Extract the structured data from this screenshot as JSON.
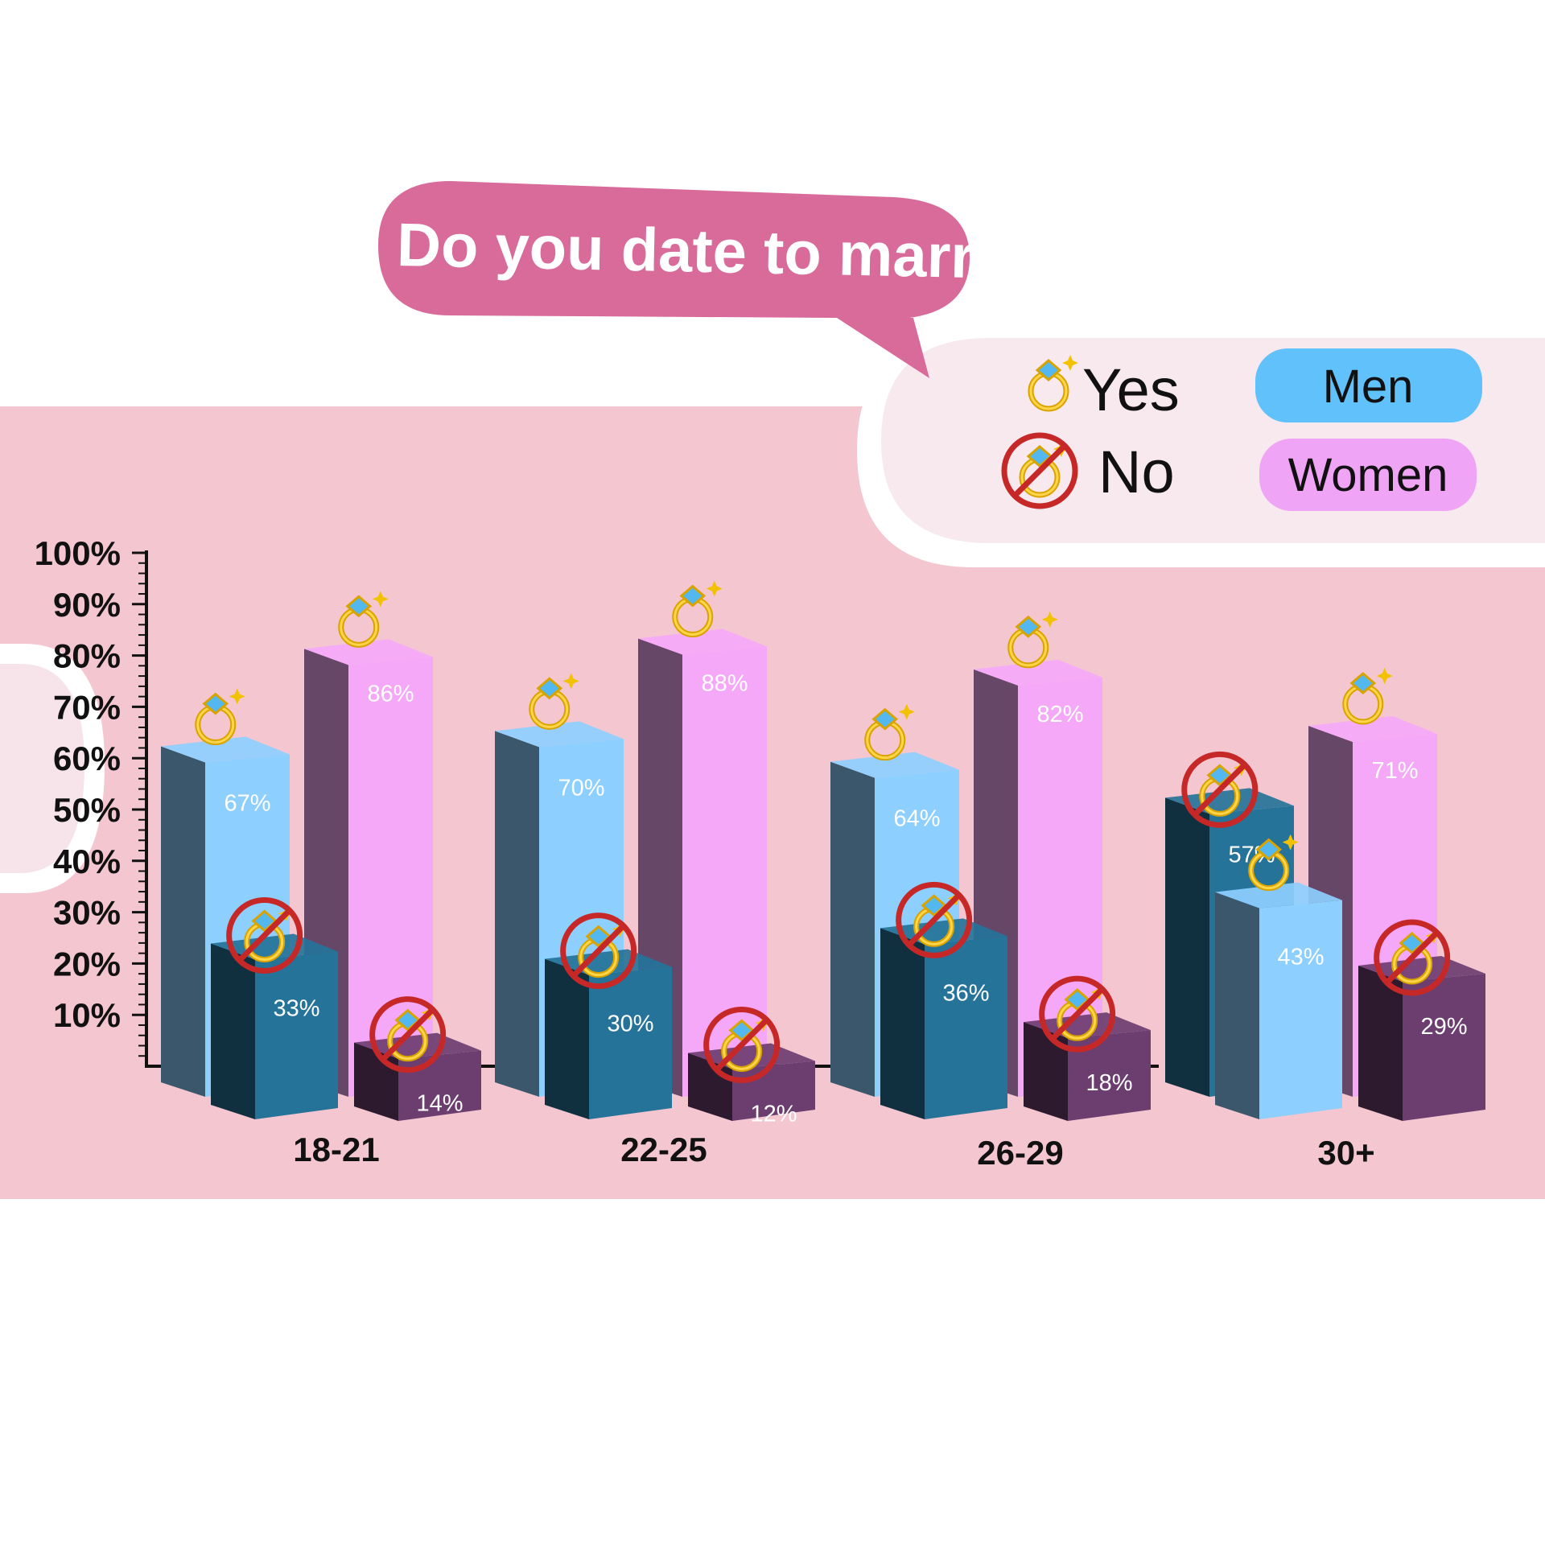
{
  "title": "Do you date to marry?",
  "legend": {
    "yes": {
      "label": "Yes",
      "icon": "ring-icon"
    },
    "no": {
      "label": "No",
      "icon": "crossed-ring-icon"
    },
    "men": {
      "label": "Men",
      "color": "#60c1fb"
    },
    "women": {
      "label": "Women",
      "color": "#f0a4f5"
    }
  },
  "colors": {
    "men_yes": "#8dcfff",
    "men_no": "#257399",
    "women_yes": "#f5a8f8",
    "women_no": "#6c3e70",
    "background_band": "#f4c6d0",
    "bubble": "#d96b9a"
  },
  "chart_data": {
    "type": "bar",
    "title": "Do you date to marry?",
    "xlabel": "",
    "ylabel": "",
    "ylim": [
      0,
      100
    ],
    "yticks": [
      "100%",
      "90%",
      "80%",
      "70%",
      "60%",
      "50%",
      "40%",
      "30%",
      "20%",
      "10%"
    ],
    "categories": [
      "18-21",
      "22-25",
      "26-29",
      "30+"
    ],
    "series": [
      {
        "name": "Men Yes",
        "values": [
          67,
          70,
          64,
          43
        ],
        "labels": [
          "67%",
          "70%",
          "64%",
          "43%"
        ]
      },
      {
        "name": "Men No",
        "values": [
          33,
          30,
          36,
          57
        ],
        "labels": [
          "33%",
          "30%",
          "36%",
          "57%"
        ]
      },
      {
        "name": "Women Yes",
        "values": [
          86,
          88,
          82,
          71
        ],
        "labels": [
          "86%",
          "88%",
          "82%",
          "71%"
        ]
      },
      {
        "name": "Women No",
        "values": [
          14,
          12,
          18,
          29
        ],
        "labels": [
          "14%",
          "12%",
          "18%",
          "29%"
        ]
      }
    ],
    "legend_position": "top-right"
  }
}
